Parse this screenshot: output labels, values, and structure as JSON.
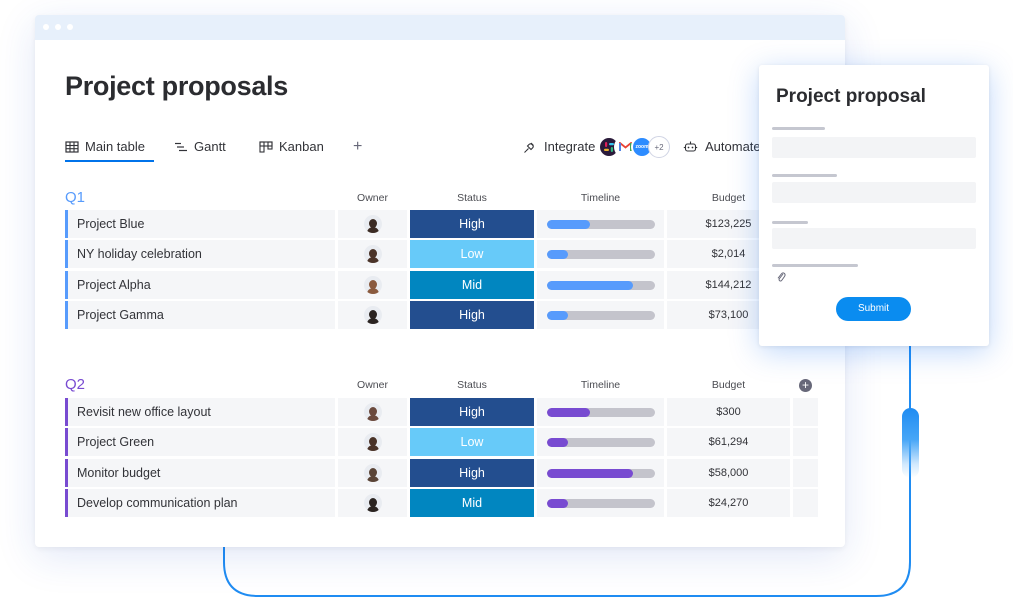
{
  "page": {
    "title": "Project proposals"
  },
  "tabs": [
    {
      "label": "Main table",
      "icon": "table-icon",
      "active": true
    },
    {
      "label": "Gantt",
      "icon": "gantt-icon"
    },
    {
      "label": "Kanban",
      "icon": "kanban-icon"
    },
    {
      "label": "+",
      "icon": "plus-icon"
    }
  ],
  "toolbar": {
    "integrate_label": "Integrate",
    "apps_more": "+2",
    "app_icons": [
      "slack-icon",
      "gmail-icon",
      "zoom-icon"
    ],
    "automate_label": "Automate"
  },
  "columns": {
    "owner": "Owner",
    "status": "Status",
    "timeline": "Timeline",
    "budget": "Budget"
  },
  "colors": {
    "accent": "#0073ea",
    "q1": "#579bfc",
    "q2": "#784bd1",
    "status_high": "#2b4e90",
    "status_low": "#66ccff",
    "status_mid": "#0086c0",
    "bar_track": "#c4c4cc"
  },
  "groups": [
    {
      "title": "Q1",
      "color": "#579bfc",
      "rows": [
        {
          "name": "Project Blue",
          "status": "High",
          "status_color": "#234e8f",
          "timeline_fill": 0.4,
          "budget": "$123,225",
          "avatar": "#3b2b23"
        },
        {
          "name": "NY holiday celebration",
          "status": "Low",
          "status_color": "#67caf9",
          "timeline_fill": 0.2,
          "budget": "$2,014",
          "avatar": "#4a3328"
        },
        {
          "name": "Project Alpha",
          "status": "Mid",
          "status_color": "#0186c0",
          "timeline_fill": 0.8,
          "budget": "$144,212",
          "avatar": "#8a5a3e"
        },
        {
          "name": "Project Gamma",
          "status": "High",
          "status_color": "#234e8f",
          "timeline_fill": 0.2,
          "budget": "$73,100",
          "avatar": "#2b2421"
        }
      ]
    },
    {
      "title": "Q2",
      "color": "#784bd1",
      "rows": [
        {
          "name": "Revisit new office layout",
          "status": "High",
          "status_color": "#234e8f",
          "timeline_fill": 0.4,
          "budget": "$300",
          "avatar": "#6b4a3e"
        },
        {
          "name": "Project Green",
          "status": "Low",
          "status_color": "#67caf9",
          "timeline_fill": 0.2,
          "budget": "$61,294",
          "avatar": "#4a3328"
        },
        {
          "name": "Monitor budget",
          "status": "High",
          "status_color": "#234e8f",
          "timeline_fill": 0.8,
          "budget": "$58,000",
          "avatar": "#5a4436"
        },
        {
          "name": "Develop communication plan",
          "status": "Mid",
          "status_color": "#0186c0",
          "timeline_fill": 0.2,
          "budget": "$24,270",
          "avatar": "#2b2421"
        }
      ]
    }
  ],
  "form": {
    "title": "Project proposal",
    "submit_label": "Submit",
    "attachment_icon": "paperclip-icon"
  }
}
